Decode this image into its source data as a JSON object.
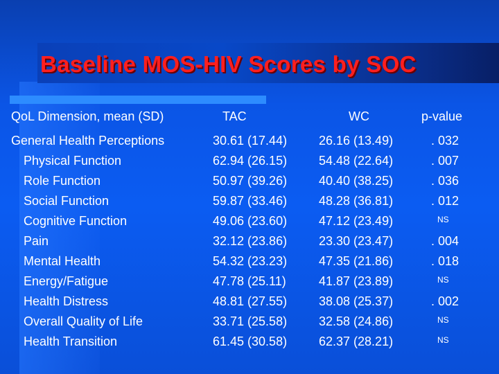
{
  "title": "Baseline MOS-HIV Scores by SOC",
  "table": {
    "headers": [
      "QoL Dimension, mean (SD)",
      "TAC",
      "WC",
      "p-value"
    ],
    "rows": [
      {
        "dimension": "General Health Perceptions",
        "tac": "30.61 (17.44)",
        "wc": "26.16 (13.49)",
        "p": ". 032"
      },
      {
        "dimension": "Physical Function",
        "tac": "62.94 (26.15)",
        "wc": "54.48 (22.64)",
        "p": ". 007"
      },
      {
        "dimension": "Role Function",
        "tac": "50.97 (39.26)",
        "wc": "40.40 (38.25)",
        "p": ". 036"
      },
      {
        "dimension": "Social Function",
        "tac": "59.87 (33.46)",
        "wc": "48.28 (36.81)",
        "p": ". 012"
      },
      {
        "dimension": "Cognitive Function",
        "tac": "49.06 (23.60)",
        "wc": "47.12 (23.49)",
        "p": "NS"
      },
      {
        "dimension": "Pain",
        "tac": "32.12 (23.86)",
        "wc": "23.30 (23.47)",
        "p": ". 004"
      },
      {
        "dimension": "Mental Health",
        "tac": "54.32 (23.23)",
        "wc": "47.35 (21.86)",
        "p": ". 018"
      },
      {
        "dimension": "Energy/Fatigue",
        "tac": "47.78 (25.11)",
        "wc": "41.87 (23.89)",
        "p": "NS"
      },
      {
        "dimension": "Health Distress",
        "tac": " 48.81 (27.55)",
        "wc": "38.08 (25.37)",
        "p": ". 002"
      },
      {
        "dimension": "Overall Quality of Life",
        "tac": "33.71 (25.58)",
        "wc": "32.58 (24.86)",
        "p": "NS"
      },
      {
        "dimension": "Health Transition",
        "tac": "61.45 (30.58)",
        "wc": "62.37 (28.21)",
        "p": "NS"
      }
    ]
  },
  "colors": {
    "background": "#0b5cf2",
    "title": "#ff1f1f",
    "text": "#ffffff",
    "accent_bar": "#2d8cff"
  }
}
